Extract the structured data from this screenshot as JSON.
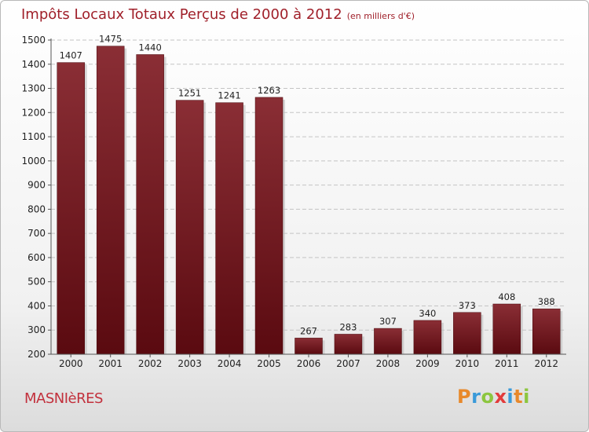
{
  "header": {
    "title": "Impôts Locaux Totaux Perçus de 2000 à 2012",
    "unit": "(en milliers d'€)"
  },
  "footer": {
    "commune": "MASNIèRES",
    "logo_letters": [
      "P",
      "r",
      "o",
      "x",
      "i",
      "t",
      "i"
    ],
    "logo_colors": [
      "#e8892b",
      "#3a9ad9",
      "#8cc63f",
      "#e23b3b",
      "#3a9ad9",
      "#e8892b",
      "#8cc63f"
    ]
  },
  "chart_data": {
    "type": "bar",
    "title": "Impôts Locaux Totaux Perçus de 2000 à 2012",
    "categories": [
      "2000",
      "2001",
      "2002",
      "2003",
      "2004",
      "2005",
      "2006",
      "2007",
      "2008",
      "2009",
      "2010",
      "2011",
      "2012"
    ],
    "values": [
      1407,
      1475,
      1440,
      1251,
      1241,
      1263,
      267,
      283,
      307,
      340,
      373,
      408,
      388
    ],
    "ylim": [
      200,
      1500
    ],
    "yticks": [
      200,
      300,
      400,
      500,
      600,
      700,
      800,
      900,
      1000,
      1100,
      1200,
      1300,
      1400,
      1500
    ],
    "grid": true,
    "bar_color": "#7a1f26"
  }
}
